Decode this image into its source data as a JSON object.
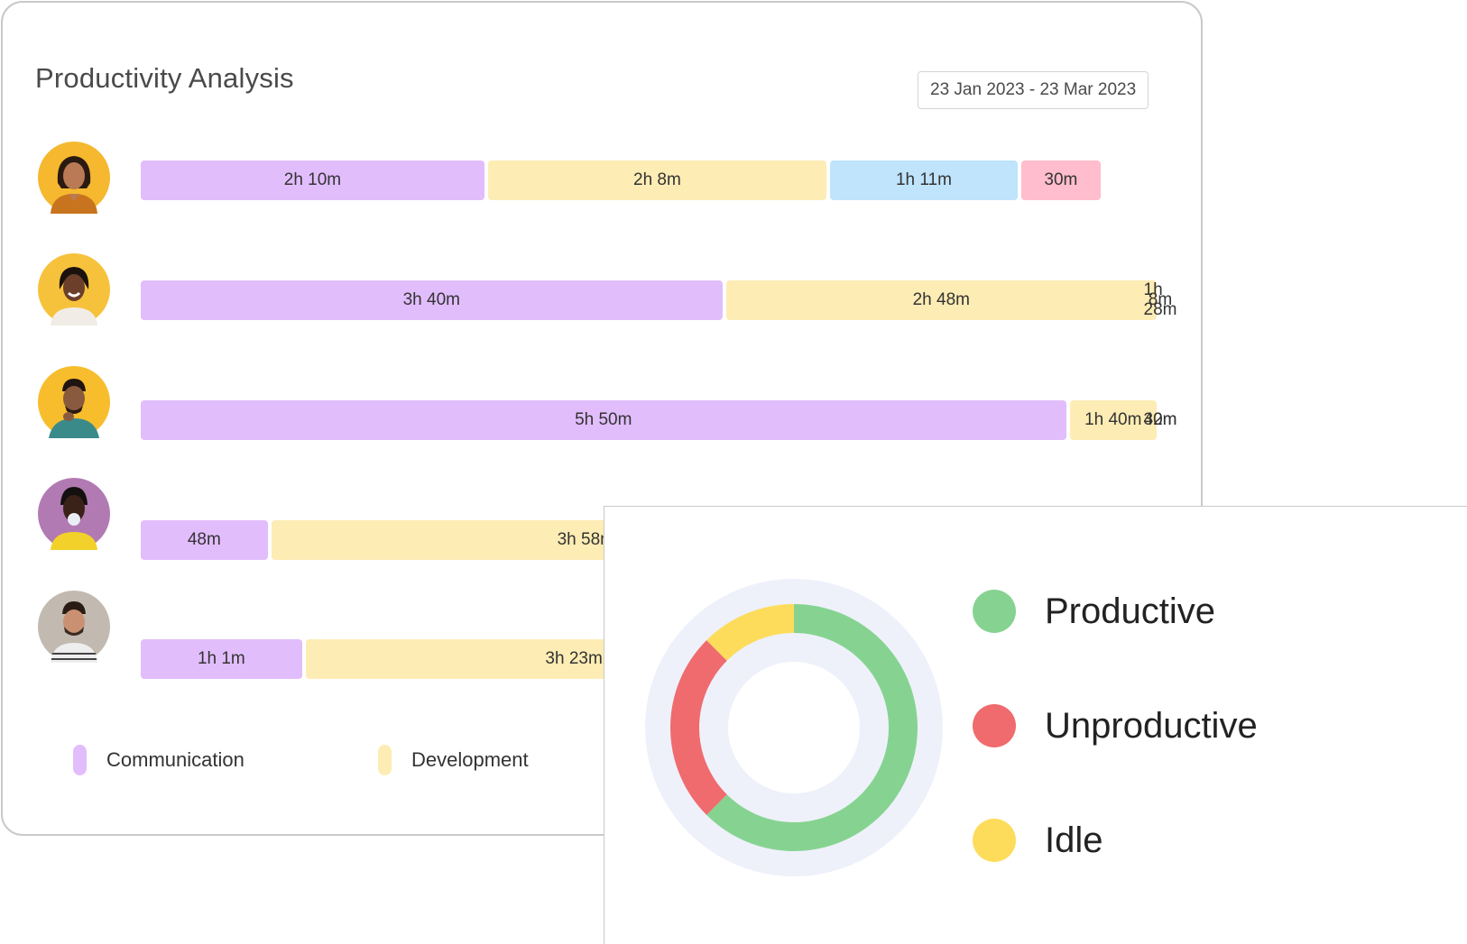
{
  "title": "Productivity Analysis",
  "date_range": "23 Jan 2023 - 23 Mar 2023",
  "colors": {
    "communication": "#e2bdfc",
    "development": "#fdecb4",
    "meeting": "#bfe4fc",
    "break": "#ffbdcd",
    "productive": "#86d391",
    "unproductive": "#ef6b6e",
    "idle": "#fddc5c"
  },
  "rows": [
    {
      "avatar": "person-avatar",
      "segments": [
        {
          "category": "communication",
          "label": "2h 10m",
          "minutes": 130
        },
        {
          "category": "development",
          "label": "2h 8m",
          "minutes": 128
        },
        {
          "category": "meeting",
          "label": "1h 11m",
          "minutes": 71
        },
        {
          "category": "break",
          "label": "30m",
          "minutes": 30
        }
      ]
    },
    {
      "avatar": "person-avatar",
      "segments": [
        {
          "category": "communication",
          "label": "3h 40m",
          "minutes": 220
        },
        {
          "category": "development",
          "label": "2h 48m",
          "minutes": 168
        },
        {
          "category": "meeting",
          "label": "1h 28m",
          "minutes": 88
        },
        {
          "category": "break",
          "label": "8m",
          "minutes": 8
        }
      ]
    },
    {
      "avatar": "person-avatar",
      "segments": [
        {
          "category": "communication",
          "label": "5h 50m",
          "minutes": 350
        },
        {
          "category": "development",
          "label": "1h 40m",
          "minutes": 100
        },
        {
          "category": "meeting",
          "label": "40m",
          "minutes": 40
        },
        {
          "category": "break",
          "label": "32m",
          "minutes": 32
        }
      ]
    },
    {
      "avatar": "person-avatar",
      "segments": [
        {
          "category": "communication",
          "label": "48m",
          "minutes": 48
        },
        {
          "category": "development",
          "label": "3h 58m",
          "minutes": 238
        }
      ]
    },
    {
      "avatar": "person-avatar",
      "segments": [
        {
          "category": "communication",
          "label": "1h 1m",
          "minutes": 61
        },
        {
          "category": "development",
          "label": "3h 23m",
          "minutes": 203
        }
      ]
    }
  ],
  "legend": [
    {
      "key": "communication",
      "label": "Communication"
    },
    {
      "key": "development",
      "label": "Development"
    }
  ],
  "status_breakdown": {
    "items": [
      {
        "key": "productive",
        "label": "Productive",
        "share": 0.625
      },
      {
        "key": "unproductive",
        "label": "Unproductive",
        "share": 0.25
      },
      {
        "key": "idle",
        "label": "Idle",
        "share": 0.125
      }
    ]
  }
}
